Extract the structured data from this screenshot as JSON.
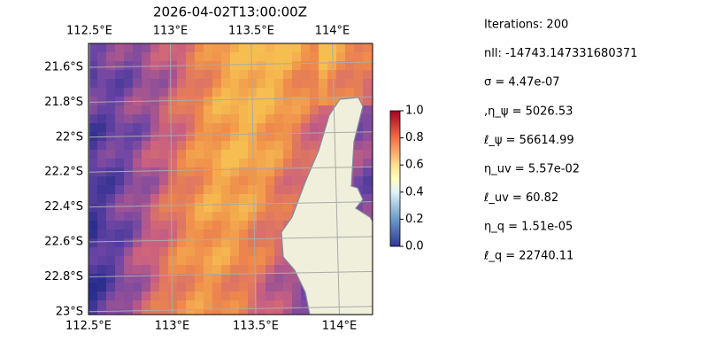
{
  "map": {
    "title": "2026-04-02T13:00:00Z",
    "top_ticks": [
      {
        "value": 112.5,
        "label": "112.5°E"
      },
      {
        "value": 113,
        "label": "113°E"
      },
      {
        "value": 113.5,
        "label": "113.5°E"
      },
      {
        "value": 114,
        "label": "114°E"
      }
    ],
    "bottom_ticks": [
      {
        "value": 112.5,
        "label": "112.5°E"
      },
      {
        "value": 113,
        "label": "113°E"
      },
      {
        "value": 113.5,
        "label": "113.5°E"
      },
      {
        "value": 114,
        "label": "114°E"
      }
    ],
    "left_ticks": [
      {
        "value": -21.6,
        "label": "21.6°S"
      },
      {
        "value": -21.8,
        "label": "21.8°S"
      },
      {
        "value": -22,
        "label": "22°S"
      },
      {
        "value": -22.2,
        "label": "22.2°S"
      },
      {
        "value": -22.4,
        "label": "22.4°S"
      },
      {
        "value": -22.6,
        "label": "22.6°S"
      },
      {
        "value": -22.8,
        "label": "22.8°S"
      },
      {
        "value": -23,
        "label": "23°S"
      }
    ]
  },
  "colorbar": {
    "ticks": [
      {
        "value": 0,
        "label": "0.0"
      },
      {
        "value": 0.2,
        "label": "0.2"
      },
      {
        "value": 0.4,
        "label": "0.4"
      },
      {
        "value": 0.6,
        "label": "0.6"
      },
      {
        "value": 0.8,
        "label": "0.8"
      },
      {
        "value": 1,
        "label": "1.0"
      }
    ]
  },
  "annotations": [
    "Iterations: 200",
    "nll: -14743.147331680371",
    "σ = 4.47e-07",
    ",η_ψ = 5026.53",
    "ℓ_ψ = 56614.99",
    "η_uv = 5.57e-02",
    "ℓ_uv = 60.82",
    "η_q = 1.51e-05",
    "ℓ_q = 22740.11"
  ]
}
